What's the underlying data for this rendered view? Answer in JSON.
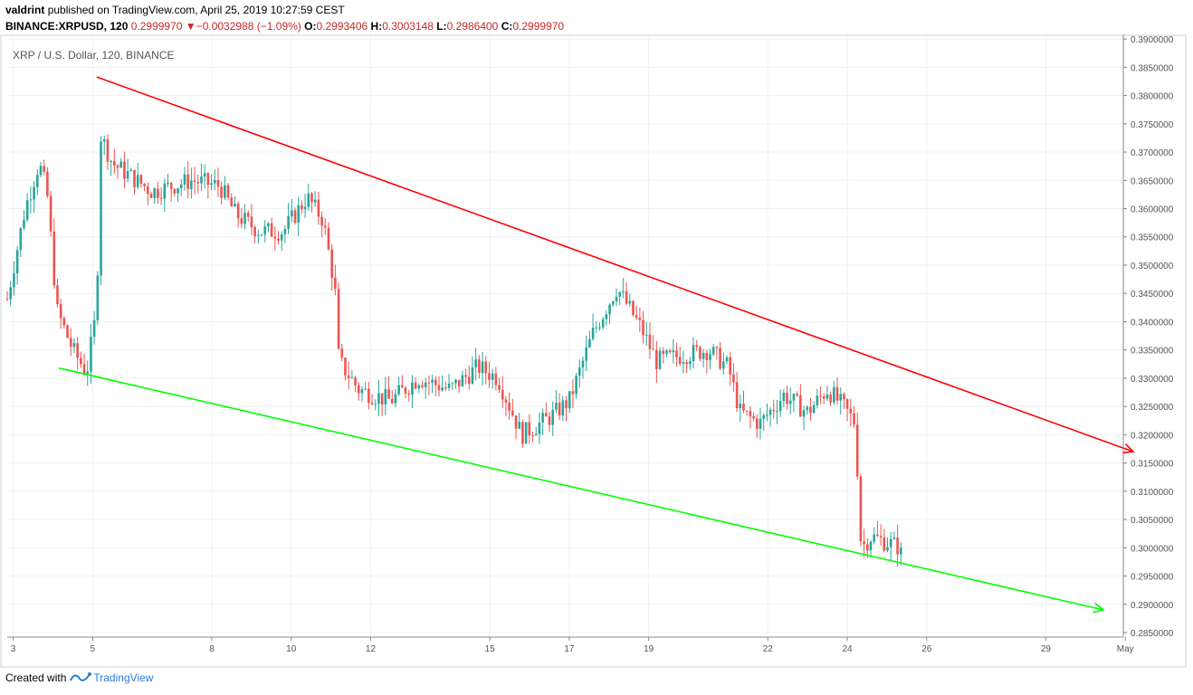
{
  "header": {
    "user": "valdrint",
    "published_text": "published on TradingView.com, April 25, 2019 10:27:59 CEST",
    "symbol": "BINANCE:XRPUSD, 120",
    "last": "0.2999970",
    "change_arrow": "▼",
    "change": "−0.0032988 (−1.09%)",
    "o_label": "O:",
    "o_value": "0.2993406",
    "h_label": "H:",
    "h_value": "0.3003148",
    "l_label": "L:",
    "l_value": "0.2986400",
    "c_label": "C:",
    "c_value": "0.2999970"
  },
  "legend": "XRP / U.S. Dollar, 120, BINANCE",
  "footer": {
    "created_with": "Created with",
    "brand": "TradingView",
    "logo_icon": "tradingview-logo-icon"
  },
  "colors": {
    "up": "#26a69a",
    "down": "#ef5350",
    "resistance": "#ff0000",
    "support": "#00ff00",
    "grid": "#eef1f4",
    "axis": "#555555"
  },
  "chart_data": {
    "type": "candlestick",
    "x_unit": "days of April 2019 (fractional)",
    "xlim": [
      2.85,
      30.95
    ],
    "ylim": [
      0.2842,
      0.3905
    ],
    "grid": true,
    "y_ticks": [
      "0.3900000",
      "0.3850000",
      "0.3800000",
      "0.3750000",
      "0.3700000",
      "0.3650000",
      "0.3600000",
      "0.3550000",
      "0.3500000",
      "0.3450000",
      "0.3400000",
      "0.3350000",
      "0.3300000",
      "0.3250000",
      "0.3200000",
      "0.3150000",
      "0.3100000",
      "0.3050000",
      "0.3000000",
      "0.2950000",
      "0.2900000",
      "0.2850000"
    ],
    "x_ticks": [
      {
        "x": 3,
        "label": "3"
      },
      {
        "x": 5,
        "label": "5"
      },
      {
        "x": 8,
        "label": "8"
      },
      {
        "x": 10,
        "label": "10"
      },
      {
        "x": 12,
        "label": "12"
      },
      {
        "x": 15,
        "label": "15"
      },
      {
        "x": 17,
        "label": "17"
      },
      {
        "x": 19,
        "label": "19"
      },
      {
        "x": 22,
        "label": "22"
      },
      {
        "x": 24,
        "label": "24"
      },
      {
        "x": 26,
        "label": "26"
      },
      {
        "x": 29,
        "label": "29"
      },
      {
        "x": 31,
        "label": "May"
      }
    ],
    "price_path": [
      [
        2.85,
        0.344
      ],
      [
        3.3,
        0.36
      ],
      [
        3.65,
        0.368
      ],
      [
        3.85,
        0.363
      ],
      [
        4.1,
        0.342
      ],
      [
        4.5,
        0.335
      ],
      [
        4.85,
        0.331
      ],
      [
        5.1,
        0.342
      ],
      [
        5.2,
        0.373
      ],
      [
        5.5,
        0.368
      ],
      [
        6.5,
        0.363
      ],
      [
        7.5,
        0.365
      ],
      [
        8.2,
        0.364
      ],
      [
        8.6,
        0.359
      ],
      [
        9.2,
        0.356
      ],
      [
        9.8,
        0.356
      ],
      [
        10.4,
        0.362
      ],
      [
        10.8,
        0.358
      ],
      [
        11.1,
        0.346
      ],
      [
        11.2,
        0.333
      ],
      [
        11.7,
        0.328
      ],
      [
        12.5,
        0.326
      ],
      [
        13.2,
        0.33
      ],
      [
        14.0,
        0.328
      ],
      [
        14.7,
        0.332
      ],
      [
        15.2,
        0.33
      ],
      [
        15.8,
        0.32
      ],
      [
        16.5,
        0.323
      ],
      [
        17.0,
        0.326
      ],
      [
        17.6,
        0.338
      ],
      [
        18.2,
        0.346
      ],
      [
        18.8,
        0.339
      ],
      [
        19.2,
        0.333
      ],
      [
        19.8,
        0.334
      ],
      [
        20.5,
        0.335
      ],
      [
        21.0,
        0.332
      ],
      [
        21.3,
        0.324
      ],
      [
        21.8,
        0.322
      ],
      [
        22.4,
        0.327
      ],
      [
        23.0,
        0.324
      ],
      [
        23.5,
        0.328
      ],
      [
        23.9,
        0.325
      ],
      [
        24.2,
        0.322
      ],
      [
        24.35,
        0.3
      ],
      [
        24.6,
        0.302
      ],
      [
        25.0,
        0.301
      ],
      [
        25.35,
        0.3
      ]
    ],
    "candle_count": 268,
    "last_close": 0.299997,
    "lines": [
      {
        "name": "resistance",
        "color": "#ff0000",
        "from": [
          5.1,
          0.3833
        ],
        "to": [
          24.3,
          0.332
        ],
        "arrow_to": [
          31.2,
          0.317
        ]
      },
      {
        "name": "support",
        "color": "#00ff00",
        "from": [
          4.15,
          0.3318
        ],
        "to": [
          24.3,
          0.296
        ],
        "arrow_to": [
          30.45,
          0.289
        ]
      }
    ]
  }
}
